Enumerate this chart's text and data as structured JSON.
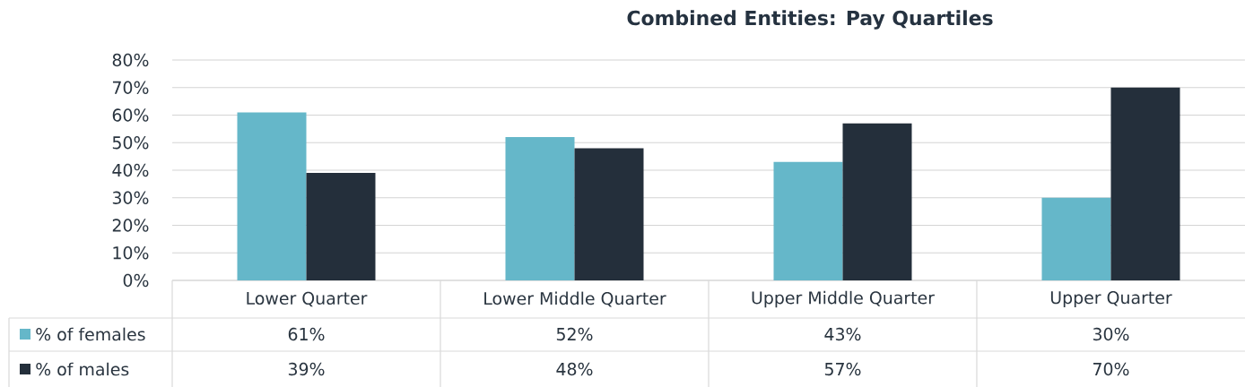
{
  "chart_data": {
    "type": "bar",
    "title": "Combined Entities: Pay Quartiles",
    "categories": [
      "Lower Quarter",
      "Lower Middle Quarter",
      "Upper Middle Quarter",
      "Upper Quarter"
    ],
    "series": [
      {
        "name": "% of females",
        "color": "#65b7c9",
        "values": [
          61,
          52,
          43,
          30
        ],
        "value_labels": [
          "61%",
          "52%",
          "43%",
          "30%"
        ]
      },
      {
        "name": "% of males",
        "color": "#242f3b",
        "values": [
          39,
          48,
          57,
          70
        ],
        "value_labels": [
          "39%",
          "48%",
          "57%",
          "70%"
        ]
      }
    ],
    "ylim": [
      0,
      80
    ],
    "yticks": [
      {
        "value": 0,
        "label": "0%"
      },
      {
        "value": 10,
        "label": "10%"
      },
      {
        "value": 20,
        "label": "20%"
      },
      {
        "value": 30,
        "label": "30%"
      },
      {
        "value": 40,
        "label": "40%"
      },
      {
        "value": 50,
        "label": "50%"
      },
      {
        "value": 60,
        "label": "60%"
      },
      {
        "value": 70,
        "label": "70%"
      },
      {
        "value": 80,
        "label": "80%"
      }
    ],
    "grid": "y",
    "legend": "bottom"
  }
}
